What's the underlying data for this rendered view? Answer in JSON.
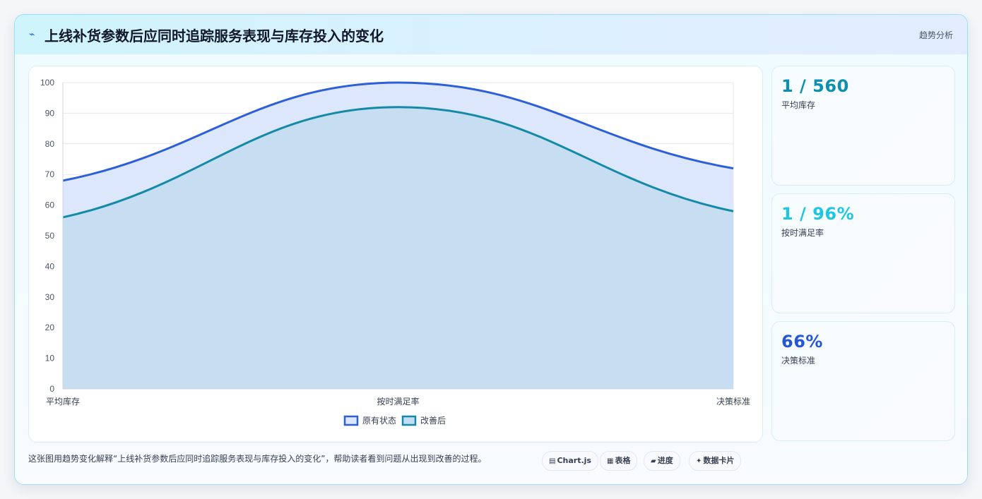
{
  "header": {
    "icon": "lightning-icon",
    "title": "上线补货参数后应同时追踪服务表现与库存投入的变化",
    "tag": "趋势分析"
  },
  "kpis": [
    {
      "value": "1 / 560",
      "label": "平均库存",
      "color": "#0e8fae"
    },
    {
      "value": "1 / 96%",
      "label": "按时满足率",
      "color": "#22c5e0"
    },
    {
      "value": "66%",
      "label": "决策标准",
      "color": "#2456d6"
    }
  ],
  "footer": {
    "text": "这张图用趋势变化解释“上线补货参数后应同时追踪服务表现与库存投入的变化”，帮助读者看到问题从出现到改善的过程。",
    "chips": [
      {
        "icon": "chart-icon",
        "glyph": "▤",
        "label": "Chart.js"
      },
      {
        "icon": "table-icon",
        "glyph": "▦",
        "label": "表格"
      },
      {
        "icon": "progress-icon",
        "glyph": "▰",
        "label": "进度"
      },
      {
        "icon": "card-icon",
        "glyph": "✦",
        "label": "数据卡片"
      }
    ]
  },
  "chart_data": {
    "type": "area",
    "categories": [
      "平均库存",
      "按时满足率",
      "决策标准"
    ],
    "series": [
      {
        "name": "原有状态",
        "values": [
          68,
          100,
          72
        ],
        "color": "#2d5fd8",
        "fill": "#dde7fb"
      },
      {
        "name": "改善后",
        "values": [
          56,
          92,
          58
        ],
        "color": "#138aa8",
        "fill": "#c3dcf1"
      }
    ],
    "ylim": [
      0,
      100
    ],
    "yticks": [
      0,
      10,
      20,
      30,
      40,
      50,
      60,
      70,
      80,
      90,
      100
    ],
    "legend_position": "bottom",
    "grid": true,
    "xlabel": "",
    "ylabel": "",
    "title": ""
  }
}
